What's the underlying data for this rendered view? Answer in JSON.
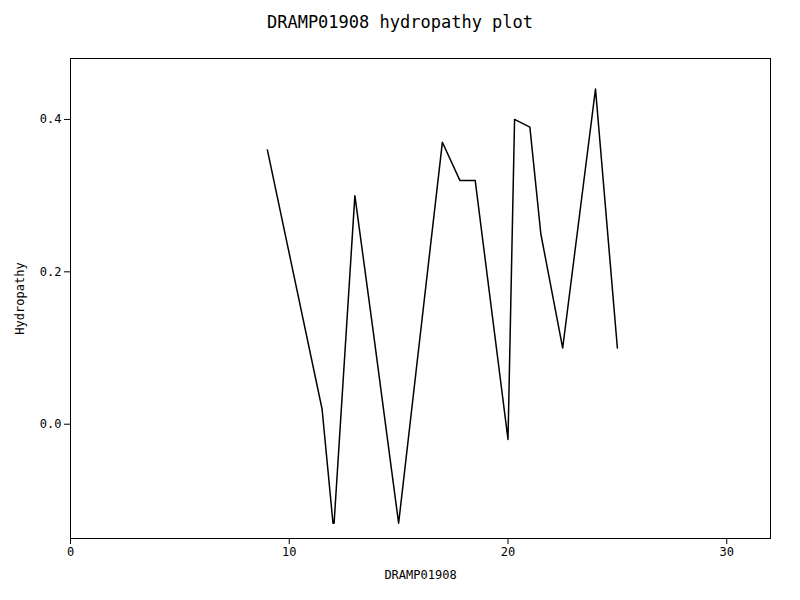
{
  "chart_data": {
    "type": "line",
    "title": "DRAMP01908 hydropathy plot",
    "xlabel": "DRAMP01908",
    "ylabel": "Hydropathy",
    "x": [
      9.0,
      11.5,
      12.0,
      12.05,
      13.0,
      13.8,
      15.0,
      17.0,
      17.8,
      18.5,
      20.0,
      20.3,
      21.0,
      21.5,
      22.5,
      24.0,
      25.0
    ],
    "values": [
      0.36,
      0.02,
      -0.13,
      -0.13,
      0.3,
      0.13,
      -0.13,
      0.37,
      0.32,
      0.32,
      -0.02,
      0.4,
      0.39,
      0.25,
      0.1,
      0.44,
      0.1
    ],
    "color": "black",
    "xlim": [
      0,
      32
    ],
    "ylim": [
      -0.15,
      0.48
    ],
    "xticks": [
      0,
      10,
      20,
      30
    ],
    "yticks": [
      {
        "value": 0,
        "label": "0.0"
      },
      0.2,
      0.4
    ],
    "grid": false
  }
}
